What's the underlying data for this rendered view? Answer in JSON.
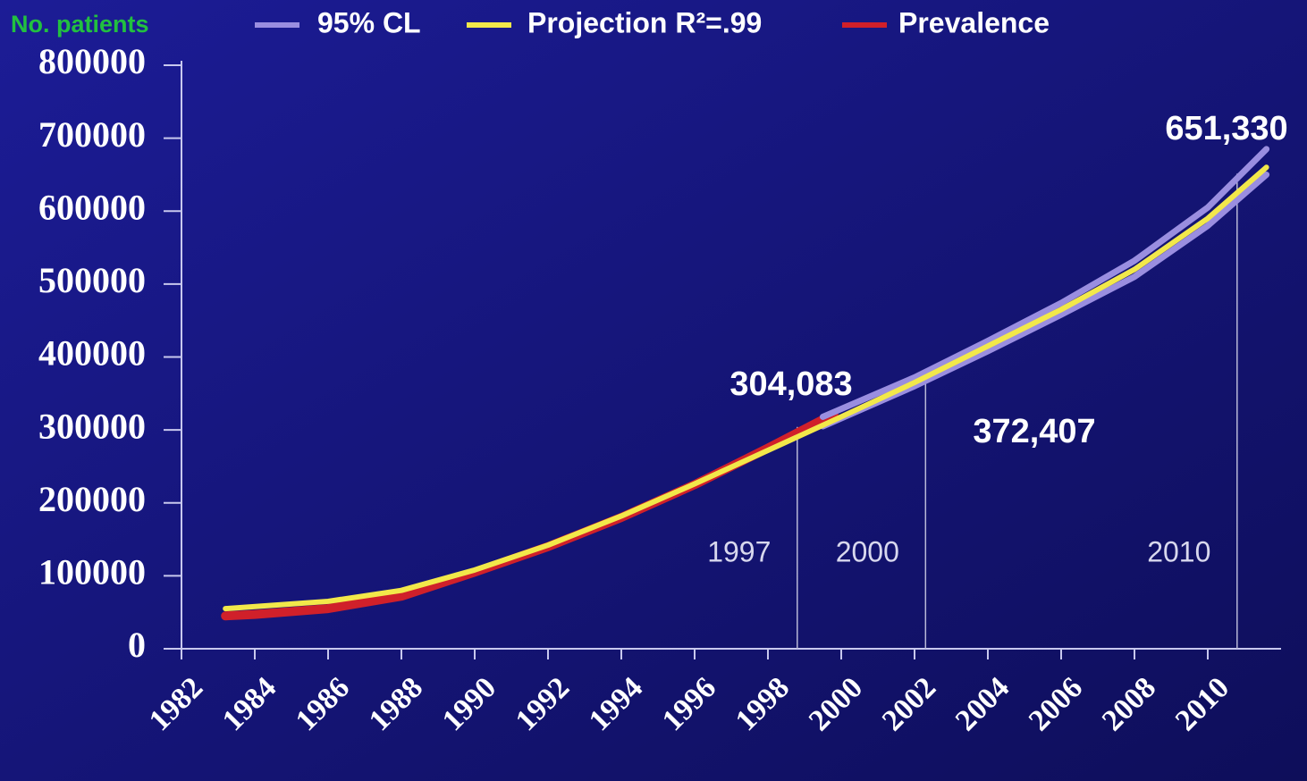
{
  "chart_data": {
    "type": "line",
    "y_axis_label": "No. patients",
    "xlim": [
      1982,
      2012
    ],
    "xticks": [
      1982,
      1984,
      1986,
      1988,
      1990,
      1992,
      1994,
      1996,
      1998,
      2000,
      2002,
      2004,
      2006,
      2008,
      2010
    ],
    "ylim": [
      0,
      800000
    ],
    "yticks": [
      0,
      100000,
      200000,
      300000,
      400000,
      500000,
      600000,
      700000,
      800000
    ],
    "series": [
      {
        "name": "95% CL",
        "color": "#9a8ee0",
        "x": [
          1999.5,
          2002,
          2004,
          2006,
          2008,
          2010,
          2011.6
        ],
        "values": [
          305000,
          360000,
          408000,
          458000,
          510000,
          580000,
          650000
        ],
        "upper": [
          318000,
          372000,
          422000,
          474000,
          532000,
          605000,
          685000
        ]
      },
      {
        "name": "Projection R²=.99",
        "color": "#f2e84a",
        "x": [
          1983.2,
          1986,
          1988,
          1990,
          1992,
          1994,
          1996,
          1998,
          2000,
          2002,
          2004,
          2006,
          2008,
          2010,
          2011.6
        ],
        "values": [
          55000,
          65000,
          80000,
          108000,
          142000,
          182000,
          226000,
          272000,
          318000,
          365000,
          415000,
          465000,
          520000,
          590000,
          660000
        ]
      },
      {
        "name": "Prevalence",
        "color": "#d0202a",
        "x": [
          1983.2,
          1984,
          1986,
          1988,
          1990,
          1992,
          1994,
          1996,
          1998,
          1999.8
        ],
        "values": [
          45000,
          47000,
          55000,
          72000,
          105000,
          140000,
          180000,
          225000,
          275000,
          322000
        ]
      }
    ],
    "annotations": [
      {
        "x": 1998.8,
        "year": "1997",
        "value": 304083,
        "label": "304,083"
      },
      {
        "x": 2002.3,
        "year": "2000",
        "value": 372407,
        "label": "372,407"
      },
      {
        "x": 2010.8,
        "year": "2010",
        "value": 651330,
        "label": "651,330"
      }
    ]
  }
}
